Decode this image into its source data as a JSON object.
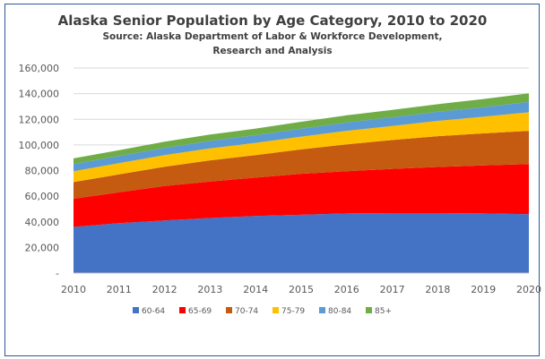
{
  "chart_data": {
    "type": "area",
    "title": "Alaska Senior Population by Age Category, 2010 to 2020",
    "subtitle_lines": [
      "Source: Alaska Department of Labor & Workforce Development,",
      "Research and Analysis"
    ],
    "xlabel": "",
    "ylabel": "",
    "stacked": true,
    "x": [
      "2010",
      "2011",
      "2012",
      "2013",
      "2014",
      "2015",
      "2016",
      "2017",
      "2018",
      "2019",
      "2020"
    ],
    "ylim": [
      0,
      160000
    ],
    "yticks": [
      0,
      20000,
      40000,
      60000,
      80000,
      100000,
      120000,
      140000,
      160000
    ],
    "ytick_labels": [
      "-",
      "20,000",
      "40,000",
      "60,000",
      "80,000",
      "100,000",
      "120,000",
      "140,000",
      "160,000"
    ],
    "grid": true,
    "legend_position": "bottom",
    "series": [
      {
        "name": "60-64",
        "color": "#4472c4",
        "values": [
          36000,
          39000,
          41000,
          43000,
          44500,
          45500,
          46500,
          46800,
          46800,
          46500,
          46000
        ]
      },
      {
        "name": "65-69",
        "color": "#ff0000",
        "values": [
          22000,
          24000,
          27000,
          28500,
          30000,
          32000,
          33000,
          34500,
          36000,
          37500,
          39000
        ]
      },
      {
        "name": "70-74",
        "color": "#c55a11",
        "values": [
          13000,
          14000,
          15000,
          16500,
          17500,
          19000,
          21000,
          22500,
          24000,
          25000,
          26000
        ]
      },
      {
        "name": "75-79",
        "color": "#ffc000",
        "values": [
          8500,
          8700,
          9000,
          9300,
          9600,
          10000,
          10500,
          11000,
          12000,
          13000,
          14500
        ]
      },
      {
        "name": "80-84",
        "color": "#5b9bd5",
        "values": [
          5500,
          5600,
          5700,
          5800,
          6000,
          6200,
          6500,
          6800,
          7000,
          7500,
          8000
        ]
      },
      {
        "name": "85+",
        "color": "#70ad47",
        "values": [
          4500,
          4600,
          4800,
          5000,
          5200,
          5400,
          5600,
          5800,
          6000,
          6300,
          6800
        ]
      }
    ]
  }
}
